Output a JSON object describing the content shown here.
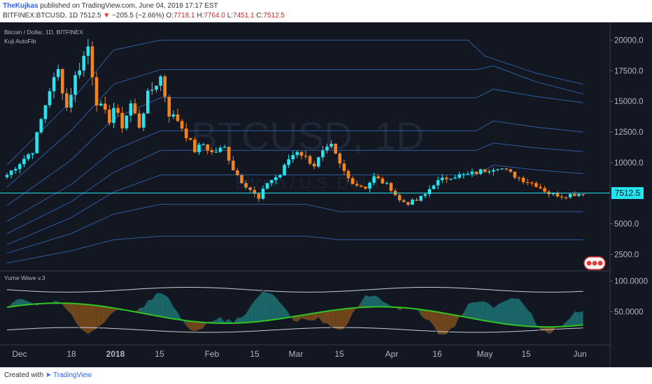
{
  "header": {
    "author": "TheKujkas",
    "published": "published on TradingView.com, June 04, 2018 17:17 EST",
    "symbol": "BITFINEX:BTCUSD, 1D",
    "last": "7512.5",
    "change_arrow": "▼",
    "change": "−205.5 (−2.66%)",
    "o_label": "O:",
    "o_value": "7718.1",
    "h_label": "H:",
    "h_value": "7764.0",
    "l_label": "L:",
    "l_value": "7451.1",
    "c_label": "C:",
    "c_value": "7512.5"
  },
  "legend": {
    "pair": "Bitcoin / Dollar, 1D, BITFINEX",
    "indicator": "Kuji AutoFib",
    "oscillator": "Yume Wave v.3"
  },
  "watermark": {
    "symbol": "BTCUSD, 1D",
    "subtitle": "Bitcoin / U.S. Dollar"
  },
  "footer": {
    "created_with": "Created with",
    "brand": "TradingView"
  },
  "colors": {
    "background": "#131722",
    "up": "#26e3f0",
    "down": "#f5821f",
    "fib": "#2c5d9e",
    "price_line": "#26e3f0",
    "osc_band": "#c9ccd4",
    "osc_signal": "#31c424",
    "fill_up": "#1d6e70",
    "fill_down": "#7a4a1c"
  },
  "chart_data": [
    {
      "type": "candlestick",
      "title": "Bitcoin / Dollar, 1D, BITFINEX",
      "ylim": [
        1500,
        21000
      ],
      "y_ticks": [
        "20000.0",
        "17500.0",
        "15000.0",
        "12500.0",
        "10000.0",
        "5000.0",
        "2500.0"
      ],
      "x_ticks": [
        "Dec",
        "18",
        "2018",
        "15",
        "Feb",
        "15",
        "Mar",
        "15",
        "Apr",
        "16",
        "May",
        "15",
        "Jun"
      ],
      "last_price": "7512.5",
      "price_anchors": [
        [
          0,
          9000
        ],
        [
          6,
          11000
        ],
        [
          10,
          16000
        ],
        [
          12,
          17500
        ],
        [
          14,
          14500
        ],
        [
          16,
          17000
        ],
        [
          19,
          19500
        ],
        [
          21,
          15000
        ],
        [
          24,
          13500
        ],
        [
          25,
          14500
        ],
        [
          27,
          13000
        ],
        [
          29,
          14800
        ],
        [
          31,
          13000
        ],
        [
          33,
          15500
        ],
        [
          36,
          17000
        ],
        [
          38,
          14000
        ],
        [
          40,
          13500
        ],
        [
          44,
          11000
        ],
        [
          46,
          11500
        ],
        [
          48,
          10800
        ],
        [
          51,
          11200
        ],
        [
          53,
          9500
        ],
        [
          55,
          8500
        ],
        [
          57,
          7800
        ],
        [
          59,
          7000
        ],
        [
          61,
          8400
        ],
        [
          64,
          9000
        ],
        [
          66,
          10300
        ],
        [
          68,
          11000
        ],
        [
          70,
          10400
        ],
        [
          72,
          9800
        ],
        [
          74,
          10800
        ],
        [
          76,
          11300
        ],
        [
          78,
          9800
        ],
        [
          80,
          8700
        ],
        [
          82,
          8200
        ],
        [
          84,
          8000
        ],
        [
          86,
          8800
        ],
        [
          88,
          8400
        ],
        [
          90,
          7900
        ],
        [
          92,
          6900
        ],
        [
          94,
          6700
        ],
        [
          96,
          6900
        ],
        [
          98,
          7400
        ],
        [
          100,
          8300
        ],
        [
          104,
          8900
        ],
        [
          108,
          9000
        ],
        [
          112,
          9400
        ],
        [
          115,
          9700
        ],
        [
          118,
          9100
        ],
        [
          121,
          8600
        ],
        [
          124,
          8200
        ],
        [
          127,
          7500
        ],
        [
          130,
          7300
        ],
        [
          132,
          7400
        ],
        [
          135,
          7500
        ]
      ]
    },
    {
      "type": "line",
      "title": "Yume Wave v.3",
      "ylim": [
        0,
        110
      ],
      "y_ticks": [
        "100.0000",
        "50.0000"
      ],
      "series": []
    }
  ]
}
